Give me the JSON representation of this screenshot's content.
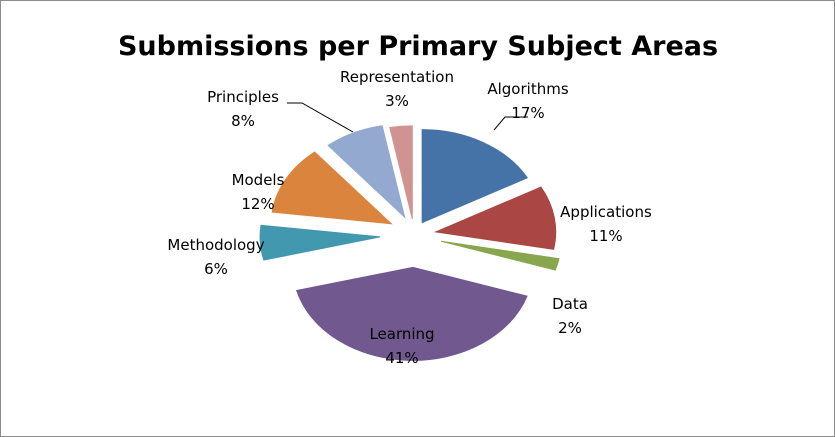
{
  "chart_data": {
    "type": "pie",
    "title": "Submissions per Primary Subject Areas",
    "exploded": true,
    "legend": "none",
    "slices": [
      {
        "label": "Algorithms",
        "percent_label": "17%",
        "value": 17,
        "color": "#4572A7"
      },
      {
        "label": "Applications",
        "percent_label": "11%",
        "value": 11,
        "color": "#AA4643"
      },
      {
        "label": "Data",
        "percent_label": "2%",
        "value": 2,
        "color": "#89A54E"
      },
      {
        "label": "Learning",
        "percent_label": "41%",
        "value": 41,
        "color": "#71588F"
      },
      {
        "label": "Methodology",
        "percent_label": "6%",
        "value": 6,
        "color": "#4198AF"
      },
      {
        "label": "Models",
        "percent_label": "12%",
        "value": 12,
        "color": "#DB843D"
      },
      {
        "label": "Principles",
        "percent_label": "8%",
        "value": 8,
        "color": "#93A9CF"
      },
      {
        "label": "Representation",
        "percent_label": "3%",
        "value": 3,
        "color": "#D19392"
      }
    ]
  }
}
